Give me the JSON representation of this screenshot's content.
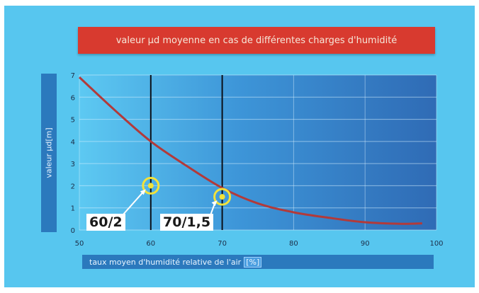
{
  "chart_data": {
    "type": "line",
    "title": "valeur µd moyenne en cas de différentes charges d'humidité",
    "ylabel": "valeur µd[m]",
    "xlabel": "taux moyen d'humidité relative de l'air",
    "xunit": "[%]",
    "xlim": [
      50,
      100
    ],
    "ylim": [
      0,
      7
    ],
    "xticks": [
      "50",
      "60",
      "70",
      "80",
      "90",
      "100"
    ],
    "yticks": [
      "0",
      "1",
      "2",
      "3",
      "4",
      "5",
      "6",
      "7"
    ],
    "grid": true,
    "series": [
      {
        "x": [
          50,
          55,
          60,
          65,
          70,
          75,
          80,
          85,
          90,
          95,
          98
        ],
        "values": [
          6.9,
          5.4,
          4.0,
          2.9,
          1.9,
          1.2,
          0.8,
          0.55,
          0.35,
          0.28,
          0.3
        ]
      }
    ],
    "vlines": [
      60,
      70
    ],
    "markers": [
      {
        "x": 60,
        "y": 2,
        "label": "60/2"
      },
      {
        "x": 70,
        "y": 1.5,
        "label": "70/1,5"
      }
    ],
    "colors": {
      "background": "#57c6ef",
      "plot_left": "#5dc9f2",
      "plot_right": "#2f6bb5",
      "line": "#b23a3a",
      "title_box": "#d83a2f",
      "label_box": "#2b79bd",
      "marker": "#f2e23a"
    }
  }
}
